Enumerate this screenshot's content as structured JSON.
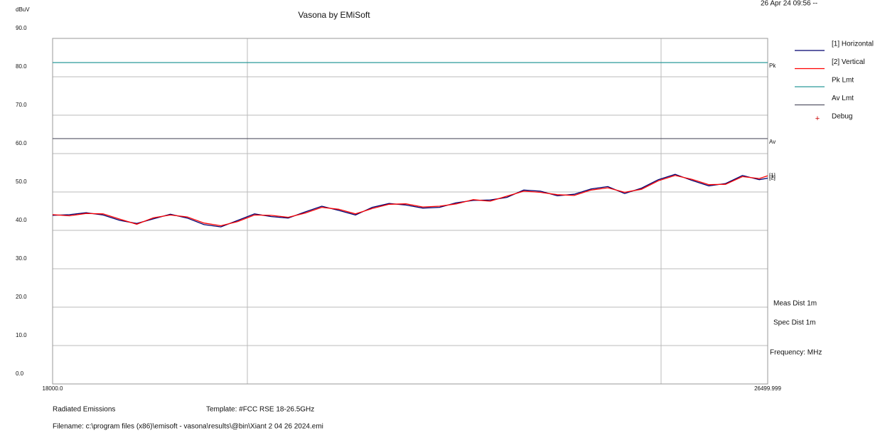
{
  "chart_data": {
    "type": "line",
    "title": "Vasona by EMiSoft",
    "timestamp": "26 Apr 24 09:56 --",
    "y_label": "dBuV",
    "xlim": [
      18000,
      26499.999
    ],
    "xticks": [
      {
        "value": 18000,
        "label": "18000.0"
      },
      26499.999
    ],
    "ylim": [
      0,
      90
    ],
    "yticks": [
      {
        "value": 0,
        "label": "0.0"
      },
      {
        "value": 10,
        "label": "10.0"
      },
      {
        "value": 20,
        "label": "20.0"
      },
      {
        "value": 30,
        "label": "30.0"
      },
      {
        "value": 40,
        "label": "40.0"
      },
      {
        "value": 50,
        "label": "50.0"
      },
      {
        "value": 60,
        "label": "60.0"
      },
      {
        "value": 70,
        "label": "70.0"
      },
      {
        "value": 80,
        "label": "80.0"
      },
      {
        "value": 90,
        "label": "90.0"
      }
    ],
    "grid": true,
    "x": [
      18000,
      18200,
      18400,
      18600,
      18800,
      19000,
      19200,
      19400,
      19600,
      19800,
      20000,
      20200,
      20400,
      20600,
      20800,
      21000,
      21200,
      21400,
      21600,
      21800,
      22000,
      22200,
      22400,
      22600,
      22800,
      23000,
      23200,
      23400,
      23600,
      23800,
      24000,
      24200,
      24400,
      24600,
      24800,
      25000,
      25200,
      25400,
      25600,
      25800,
      26000,
      26200,
      26400,
      26499.999
    ],
    "series": [
      {
        "name": "[1] Horizontal",
        "end_label": "[1]",
        "color": "#00006e",
        "values": [
          43.9,
          44.1,
          44.6,
          44.0,
          42.6,
          41.8,
          43.0,
          44.2,
          43.2,
          41.5,
          40.9,
          42.6,
          44.3,
          43.6,
          43.2,
          44.8,
          46.3,
          45.2,
          44.0,
          46.0,
          47.0,
          46.6,
          45.8,
          46.0,
          47.2,
          47.8,
          47.9,
          48.6,
          50.5,
          50.2,
          49.0,
          49.4,
          50.8,
          51.4,
          49.6,
          51.0,
          53.2,
          54.6,
          53.0,
          51.6,
          52.2,
          54.3,
          53.2,
          53.6
        ]
      },
      {
        "name": "[2] Vertical",
        "end_label": "[2]",
        "color": "#ff0000",
        "values": [
          44.1,
          43.8,
          44.4,
          44.3,
          42.9,
          41.6,
          43.3,
          44.0,
          43.5,
          41.9,
          41.2,
          42.3,
          44.0,
          43.9,
          43.4,
          44.5,
          46.0,
          45.5,
          44.3,
          45.7,
          46.8,
          46.9,
          46.1,
          46.3,
          46.9,
          48.0,
          47.6,
          48.9,
          50.2,
          49.9,
          49.3,
          49.1,
          50.5,
          51.1,
          49.9,
          50.7,
          52.9,
          54.3,
          53.3,
          51.9,
          52.0,
          54.0,
          53.5,
          54.2
        ]
      }
    ],
    "limits": [
      {
        "name": "Pk Lmt",
        "label": "Pk",
        "color": "#2a9a9a",
        "value": 83.7
      },
      {
        "name": "Av Lmt",
        "label": "Av",
        "color": "#555566",
        "value": 63.9
      }
    ],
    "debug": {
      "name": "Debug",
      "color": "#cc0000"
    },
    "notes": [
      "Meas Dist 1m",
      "Spec Dist 1m",
      "Frequency: MHz"
    ],
    "footer": {
      "test": "Radiated Emissions",
      "template": "Template: #FCC RSE 18-26.5GHz",
      "filename": "Filename: c:\\program files (x86)\\emisoft - vasona\\results\\@bin\\Xiant 2 04 26 2024.emi"
    }
  }
}
